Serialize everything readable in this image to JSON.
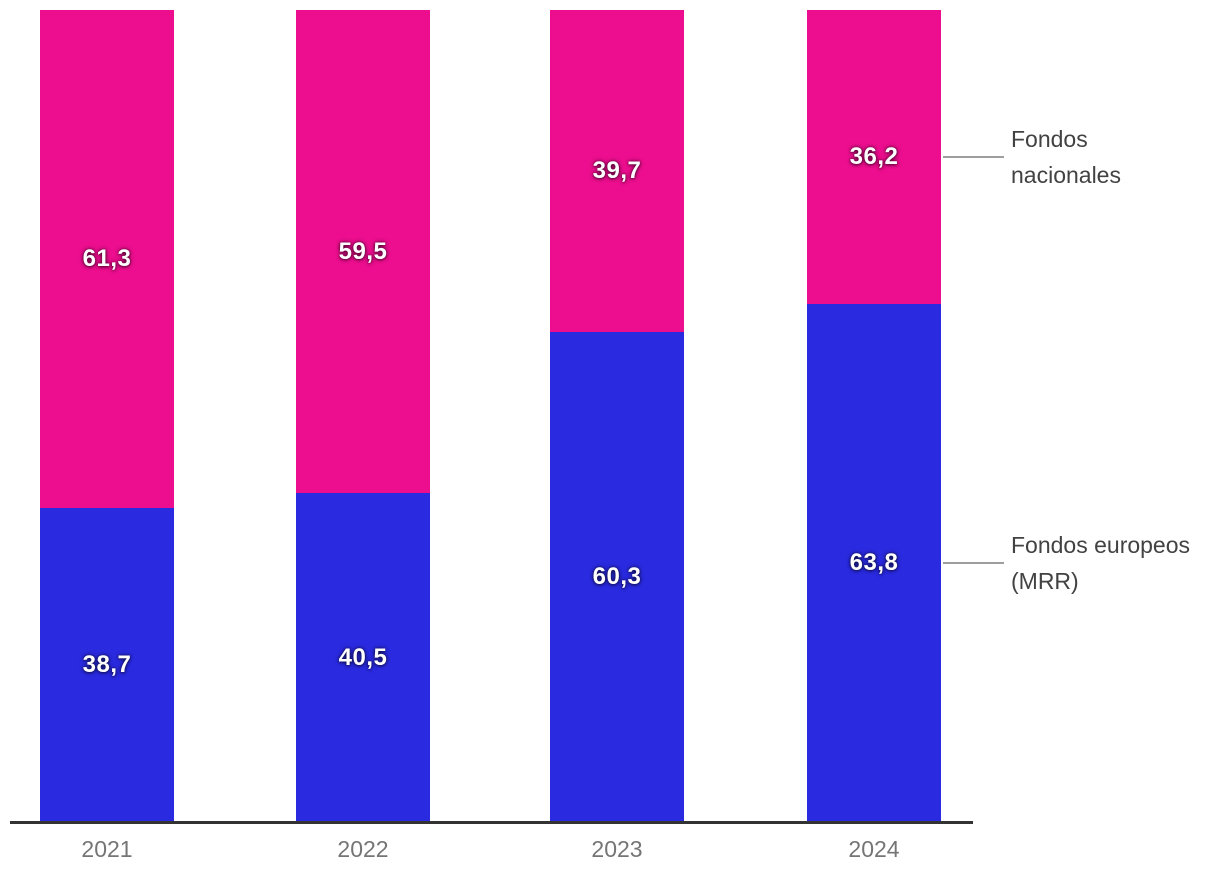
{
  "chart_data": {
    "type": "bar",
    "stacked": true,
    "percent_stacked": true,
    "title": "",
    "xlabel": "",
    "ylabel": "",
    "ylim": [
      0,
      100
    ],
    "grid": false,
    "legend_position": "right-annotations",
    "categories": [
      "2021",
      "2022",
      "2023",
      "2024"
    ],
    "series": [
      {
        "name": "Fondos europeos (MRR)",
        "legend_lines": [
          "Fondos europeos",
          "(MRR)"
        ],
        "color": "#2a2ae0",
        "values": [
          38.7,
          40.5,
          60.3,
          63.8
        ],
        "labels": [
          "38,7",
          "40,5",
          "60,3",
          "63,8"
        ]
      },
      {
        "name": "Fondos nacionales",
        "legend_lines": [
          "Fondos",
          "nacionales"
        ],
        "color": "#ec0e8e",
        "values": [
          61.3,
          59.5,
          39.7,
          36.2
        ],
        "labels": [
          "61,3",
          "59,5",
          "39,7",
          "36,2"
        ]
      }
    ]
  },
  "colors": {
    "axis_line": "#333333",
    "x_label_text": "#757575",
    "legend_text": "#424242",
    "legend_connector": "#9e9e9e",
    "value_label_text": "#ffffff",
    "background": "#ffffff"
  }
}
